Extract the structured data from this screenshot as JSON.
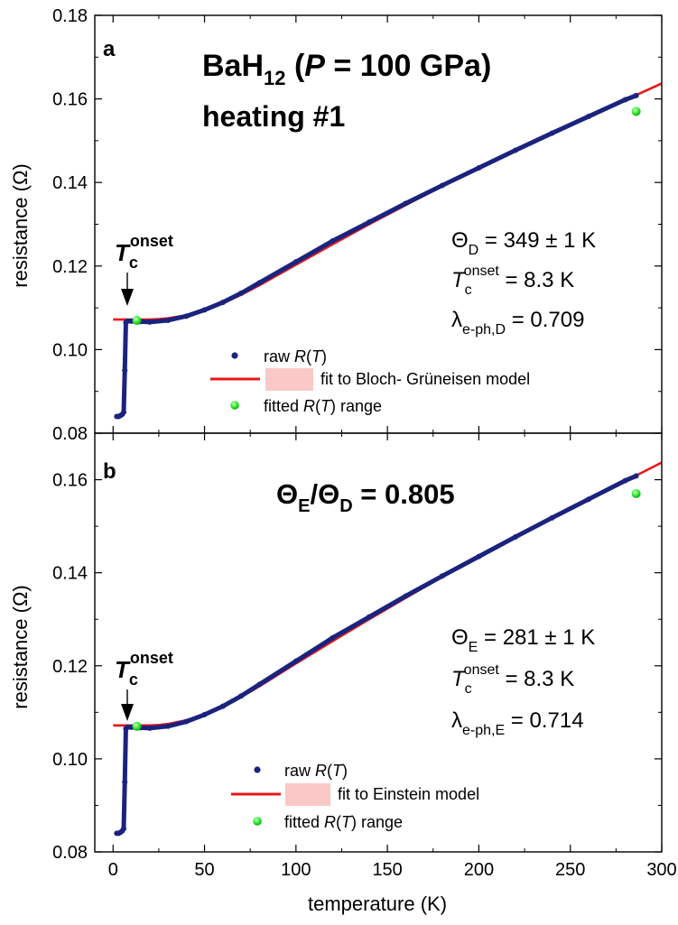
{
  "chart_data": [
    {
      "type": "scatter",
      "panel_label": "a",
      "title_main": "BaH",
      "title_sub": "12",
      "title_rest_1": " (",
      "title_italic": "P",
      "title_rest_2": " = 100 GPa)",
      "subtitle": "heating #1",
      "xlabel": "temperature (K)",
      "ylabel": "resistance (Ω)",
      "xlim": [
        -10,
        300
      ],
      "ylim": [
        0.08,
        0.18
      ],
      "y_ticks": [
        "0.08",
        "0.10",
        "0.12",
        "0.14",
        "0.16",
        "0.18"
      ],
      "x_ticks": [
        "0",
        "50",
        "100",
        "150",
        "200",
        "250",
        "300"
      ],
      "show_x_tick_labels": false,
      "annotation": {
        "T": "T",
        "sub": "c",
        "sup": "onset"
      },
      "param_lines": [
        {
          "main": "Θ",
          "sub": "D",
          "sup": "",
          "rest": " = 349 ± 1 K"
        },
        {
          "main": "T",
          "sub": "c",
          "sup": "onset",
          "rest": " = 8.3 K"
        },
        {
          "main": "λ",
          "sub": "e-ph,D",
          "sup": "",
          "rest": " = 0.709"
        }
      ],
      "legend": {
        "raw_pre": "raw ",
        "raw_it": "R",
        "raw_post": "(",
        "raw_T": "T",
        "raw_end": ")",
        "fit": "fit to Bloch- Grüneisen model",
        "range_pre": "fitted ",
        "range_it": "R",
        "range_post": "(",
        "range_T": "T",
        "range_end": ") range"
      },
      "raw_series": {
        "name": "raw R(T)",
        "color": "#1a237e",
        "x": [
          2,
          3,
          4,
          5,
          5.8,
          6.4,
          7,
          8,
          10,
          15,
          20,
          30,
          40,
          50,
          60,
          70,
          80,
          100,
          120,
          140,
          160,
          180,
          200,
          220,
          240,
          260,
          280,
          286
        ],
        "y": [
          0.084,
          0.084,
          0.0842,
          0.0845,
          0.085,
          0.095,
          0.1065,
          0.1068,
          0.1068,
          0.1067,
          0.1066,
          0.107,
          0.108,
          0.1095,
          0.1113,
          0.1135,
          0.116,
          0.121,
          0.126,
          0.1305,
          0.135,
          0.1393,
          0.1435,
          0.1477,
          0.1518,
          0.1558,
          0.1598,
          0.1608
        ]
      },
      "fit_series": {
        "name": "fit to Bloch- Grüneisen model",
        "color": "#e8171b",
        "x": [
          0,
          5,
          10,
          15,
          20,
          25,
          30,
          40,
          50,
          60,
          70,
          80,
          100,
          120,
          140,
          160,
          180,
          200,
          220,
          240,
          260,
          280,
          300
        ],
        "y": [
          0.1072,
          0.1072,
          0.1072,
          0.1072,
          0.1072,
          0.1073,
          0.1075,
          0.1082,
          0.1094,
          0.1111,
          0.1131,
          0.1154,
          0.1203,
          0.1252,
          0.13,
          0.1346,
          0.1391,
          0.1434,
          0.1477,
          0.1518,
          0.1558,
          0.1597,
          0.1637
        ]
      },
      "fitted_range_points": {
        "name": "fitted R(T) range",
        "color": "#33ee33",
        "x": [
          13,
          286
        ],
        "y": [
          0.107,
          0.157
        ]
      }
    },
    {
      "type": "scatter",
      "panel_label": "b",
      "ratio_title": {
        "a": "Θ",
        "a_sub": "E",
        "slash": "/",
        "b": "Θ",
        "b_sub": "D",
        "rest": " = 0.805"
      },
      "xlabel": "temperature (K)",
      "ylabel": "resistance (Ω)",
      "xlim": [
        -10,
        300
      ],
      "ylim": [
        0.08,
        0.17
      ],
      "y_ticks": [
        "0.08",
        "0.10",
        "0.12",
        "0.14",
        "0.16"
      ],
      "x_ticks": [
        "0",
        "50",
        "100",
        "150",
        "200",
        "250",
        "300"
      ],
      "show_x_tick_labels": true,
      "annotation": {
        "T": "T",
        "sub": "c",
        "sup": "onset"
      },
      "param_lines": [
        {
          "main": "Θ",
          "sub": "E",
          "sup": "",
          "rest": " = 281 ± 1 K"
        },
        {
          "main": "T",
          "sub": "c",
          "sup": "onset",
          "rest": " = 8.3 K"
        },
        {
          "main": "λ",
          "sub": "e-ph,E",
          "sup": "",
          "rest": " = 0.714"
        }
      ],
      "legend": {
        "raw_pre": "raw ",
        "raw_it": "R",
        "raw_post": "(",
        "raw_T": "T",
        "raw_end": ")",
        "fit": "fit to Einstein model",
        "range_pre": "fitted ",
        "range_it": "R",
        "range_post": "(",
        "range_T": "T",
        "range_end": ") range"
      },
      "raw_series": {
        "name": "raw R(T)",
        "color": "#1a237e",
        "x": [
          2,
          3,
          4,
          5,
          5.8,
          6.4,
          7,
          8,
          10,
          15,
          20,
          30,
          40,
          50,
          60,
          70,
          80,
          100,
          120,
          140,
          160,
          180,
          200,
          220,
          240,
          260,
          280,
          286
        ],
        "y": [
          0.084,
          0.084,
          0.0842,
          0.0845,
          0.085,
          0.095,
          0.1065,
          0.1068,
          0.1068,
          0.1067,
          0.1066,
          0.107,
          0.108,
          0.1095,
          0.1113,
          0.1135,
          0.116,
          0.121,
          0.126,
          0.1305,
          0.135,
          0.1393,
          0.1435,
          0.1477,
          0.1518,
          0.1558,
          0.1598,
          0.1608
        ]
      },
      "fit_series": {
        "name": "fit to Einstein model",
        "color": "#e8171b",
        "x": [
          0,
          5,
          10,
          15,
          20,
          25,
          30,
          40,
          50,
          60,
          70,
          80,
          100,
          120,
          140,
          160,
          180,
          200,
          220,
          240,
          260,
          280,
          300
        ],
        "y": [
          0.1072,
          0.1072,
          0.1072,
          0.1072,
          0.1072,
          0.1073,
          0.1075,
          0.1083,
          0.1096,
          0.1113,
          0.1133,
          0.1156,
          0.1205,
          0.1253,
          0.13,
          0.1346,
          0.1391,
          0.1434,
          0.1477,
          0.1518,
          0.1558,
          0.1597,
          0.1637
        ]
      },
      "fitted_range_points": {
        "name": "fitted R(T) range",
        "color": "#33ee33",
        "x": [
          13,
          286
        ],
        "y": [
          0.107,
          0.157
        ]
      }
    }
  ]
}
